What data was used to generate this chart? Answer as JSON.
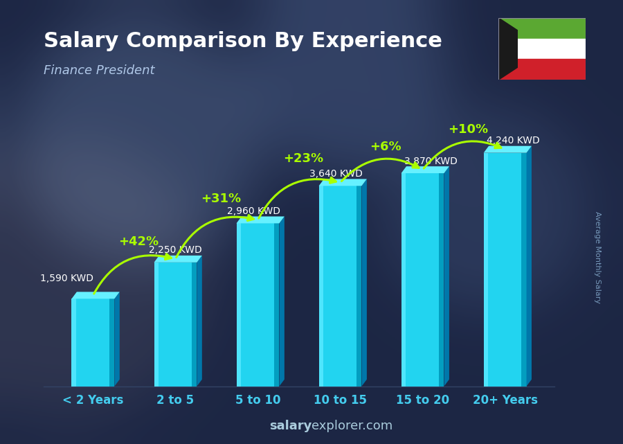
{
  "title": "Salary Comparison By Experience",
  "subtitle": "Finance President",
  "categories": [
    "< 2 Years",
    "2 to 5",
    "5 to 10",
    "10 to 15",
    "15 to 20",
    "20+ Years"
  ],
  "values": [
    1590,
    2250,
    2960,
    3640,
    3870,
    4240
  ],
  "labels": [
    "1,590 KWD",
    "2,250 KWD",
    "2,960 KWD",
    "3,640 KWD",
    "3,870 KWD",
    "4,240 KWD"
  ],
  "pct_changes": [
    "+42%",
    "+31%",
    "+23%",
    "+6%",
    "+10%"
  ],
  "bar_face_color": "#22d4f0",
  "bar_left_color": "#55e8ff",
  "bar_right_color": "#0099bb",
  "bar_top_color": "#66f0ff",
  "background_color": "#1a2340",
  "title_color": "#ffffff",
  "subtitle_color": "#b0c8e8",
  "label_color": "#ffffff",
  "pct_color": "#aaff00",
  "xtick_color": "#44ccee",
  "watermark_salary": "salary",
  "watermark_explorer": "explorer",
  "watermark_dot_com": ".com",
  "side_label": "Average Monthly Salary",
  "ylim": [
    0,
    5000
  ],
  "figsize": [
    9.0,
    6.41
  ],
  "dpi": 100,
  "kuwait_flag": {
    "green": "#5ba832",
    "white": "#ffffff",
    "red": "#d0202a",
    "black": "#1a1a1a"
  }
}
